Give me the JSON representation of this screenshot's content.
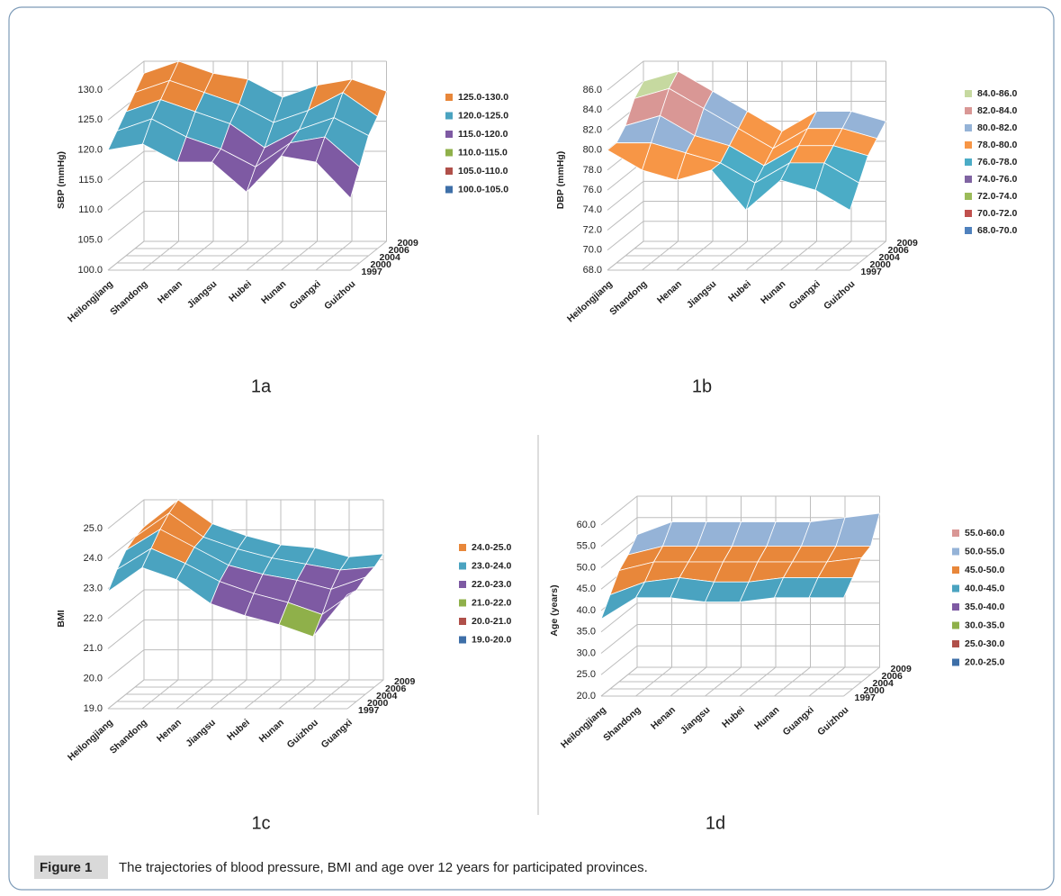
{
  "chart_data": [
    {
      "type": "surface",
      "panel_label": "1a",
      "zlabel": "SBP (mmHg)",
      "categories": [
        "Heilongjiang",
        "Shandong",
        "Henan",
        "Jiangsu",
        "Hubei",
        "Hunan",
        "Guangxi",
        "Guizhou"
      ],
      "series": [
        {
          "name": "1997",
          "values": [
            120,
            121,
            118,
            118,
            113,
            119,
            118,
            112
          ]
        },
        {
          "name": "2000",
          "values": [
            122,
            124,
            121,
            119,
            116,
            120,
            121,
            116
          ]
        },
        {
          "name": "2004",
          "values": [
            124,
            126,
            124,
            122,
            118,
            121,
            123,
            120
          ]
        },
        {
          "name": "2006",
          "values": [
            126,
            128,
            126,
            124,
            121,
            123,
            126,
            122
          ]
        },
        {
          "name": "2009",
          "values": [
            128,
            130,
            128,
            127,
            124,
            126,
            127,
            125
          ]
        }
      ],
      "zlim": [
        100,
        130
      ],
      "zticks": [
        {
          "value": 100,
          "label": "100.0"
        },
        {
          "value": 105,
          "label": "105.0"
        },
        {
          "value": 110,
          "label": "110.0"
        },
        {
          "value": 115,
          "label": "115.0"
        },
        {
          "value": 120,
          "label": "120.0"
        },
        {
          "value": 125,
          "label": "125.0"
        },
        {
          "value": 130,
          "label": "130.0"
        }
      ],
      "bands": [
        {
          "label": "125.0-130.0",
          "range": [
            125,
            130
          ],
          "color": "#e8873a"
        },
        {
          "label": "120.0-125.0",
          "range": [
            120,
            125
          ],
          "color": "#4aa3c0"
        },
        {
          "label": "115.0-120.0",
          "range": [
            115,
            120
          ],
          "color": "#7e5aa3"
        },
        {
          "label": "110.0-115.0",
          "range": [
            110,
            115
          ],
          "color": "#8fb04a"
        },
        {
          "label": "105.0-110.0",
          "range": [
            105,
            110
          ],
          "color": "#b0504a"
        },
        {
          "label": "100.0-105.0",
          "range": [
            100,
            105
          ],
          "color": "#3e6fa8"
        }
      ]
    },
    {
      "type": "surface",
      "panel_label": "1b",
      "zlabel": "DBP (mmHg)",
      "categories": [
        "Heilongjiang",
        "Shandong",
        "Henan",
        "Jiangsu",
        "Hubei",
        "Hunan",
        "Guangxi",
        "Guizhou"
      ],
      "series": [
        {
          "name": "1997",
          "values": [
            80,
            78,
            77,
            78,
            74,
            77,
            76,
            74
          ]
        },
        {
          "name": "2000",
          "values": [
            80,
            80,
            79,
            78,
            76,
            78,
            78,
            76
          ]
        },
        {
          "name": "2004",
          "values": [
            81,
            82,
            80,
            79,
            77,
            79,
            79,
            78
          ]
        },
        {
          "name": "2006",
          "values": [
            83,
            84,
            82,
            80,
            78,
            80,
            80,
            79
          ]
        },
        {
          "name": "2009",
          "values": [
            84,
            85,
            83,
            81,
            79,
            81,
            81,
            80
          ]
        }
      ],
      "zlim": [
        68,
        86
      ],
      "zticks": [
        {
          "value": 68,
          "label": "68.0"
        },
        {
          "value": 70,
          "label": "70.0"
        },
        {
          "value": 72,
          "label": "72.0"
        },
        {
          "value": 74,
          "label": "74.0"
        },
        {
          "value": 76,
          "label": "76.0"
        },
        {
          "value": 78,
          "label": "78.0"
        },
        {
          "value": 80,
          "label": "80.0"
        },
        {
          "value": 82,
          "label": "82.0"
        },
        {
          "value": 84,
          "label": "84.0"
        },
        {
          "value": 86,
          "label": "86.0"
        }
      ],
      "bands": [
        {
          "label": "84.0-86.0",
          "range": [
            84,
            86
          ],
          "color": "#c6d9a0"
        },
        {
          "label": "82.0-84.0",
          "range": [
            82,
            84
          ],
          "color": "#d99795"
        },
        {
          "label": "80.0-82.0",
          "range": [
            80,
            82
          ],
          "color": "#95b3d7"
        },
        {
          "label": "78.0-80.0",
          "range": [
            78,
            80
          ],
          "color": "#f79646"
        },
        {
          "label": "76.0-78.0",
          "range": [
            76,
            78
          ],
          "color": "#4bacc6"
        },
        {
          "label": "74.0-76.0",
          "range": [
            74,
            76
          ],
          "color": "#8064a2"
        },
        {
          "label": "72.0-74.0",
          "range": [
            72,
            74
          ],
          "color": "#9bbb59"
        },
        {
          "label": "70.0-72.0",
          "range": [
            70,
            72
          ],
          "color": "#c0504d"
        },
        {
          "label": "68.0-70.0",
          "range": [
            68,
            70
          ],
          "color": "#4f81bd"
        }
      ]
    },
    {
      "type": "surface",
      "panel_label": "1c",
      "zlabel": "BMI",
      "categories": [
        "Heilongjiang",
        "Shandong",
        "Henan",
        "Jiangsu",
        "Hubei",
        "Hunan",
        "Guizhou",
        "Guangxi"
      ],
      "series": [
        {
          "name": "1997",
          "values": [
            22.9,
            23.7,
            23.3,
            22.5,
            22.1,
            21.8,
            21.4,
            22.8
          ]
        },
        {
          "name": "2000",
          "values": [
            23.4,
            24.1,
            23.6,
            23.0,
            22.6,
            22.3,
            21.9,
            22.7
          ]
        },
        {
          "name": "2004",
          "values": [
            23.8,
            24.5,
            23.9,
            23.3,
            23.0,
            22.8,
            22.5,
            22.9
          ]
        },
        {
          "name": "2006",
          "values": [
            24.0,
            24.8,
            24.0,
            23.6,
            23.3,
            23.1,
            22.9,
            23.0
          ]
        },
        {
          "name": "2009",
          "values": [
            24.1,
            25.0,
            24.2,
            23.8,
            23.5,
            23.4,
            23.1,
            23.2
          ]
        }
      ],
      "zlim": [
        19,
        25
      ],
      "zticks": [
        {
          "value": 19,
          "label": "19.0"
        },
        {
          "value": 20,
          "label": "20.0"
        },
        {
          "value": 21,
          "label": "21.0"
        },
        {
          "value": 22,
          "label": "22.0"
        },
        {
          "value": 23,
          "label": "23.0"
        },
        {
          "value": 24,
          "label": "24.0"
        },
        {
          "value": 25,
          "label": "25.0"
        }
      ],
      "bands": [
        {
          "label": "24.0-25.0",
          "range": [
            24,
            25
          ],
          "color": "#e8873a"
        },
        {
          "label": "23.0-24.0",
          "range": [
            23,
            24
          ],
          "color": "#4aa3c0"
        },
        {
          "label": "22.0-23.0",
          "range": [
            22,
            23
          ],
          "color": "#7e5aa3"
        },
        {
          "label": "21.0-22.0",
          "range": [
            21,
            22
          ],
          "color": "#8fb04a"
        },
        {
          "label": "20.0-21.0",
          "range": [
            20,
            21
          ],
          "color": "#b0504a"
        },
        {
          "label": "19.0-20.0",
          "range": [
            19,
            20
          ],
          "color": "#3e6fa8"
        }
      ]
    },
    {
      "type": "surface",
      "panel_label": "1d",
      "zlabel": "Age (years)",
      "categories": [
        "Heilongjiang",
        "Shandong",
        "Henan",
        "Jiangsu",
        "Hubei",
        "Hunan",
        "Guangxi",
        "Guizhou"
      ],
      "series": [
        {
          "name": "1997",
          "values": [
            38,
            43,
            43,
            42,
            42,
            43,
            43,
            43
          ]
        },
        {
          "name": "2000",
          "values": [
            42,
            45,
            46,
            45,
            45,
            46,
            46,
            46
          ]
        },
        {
          "name": "2004",
          "values": [
            46,
            48,
            48,
            48,
            48,
            48,
            48,
            49
          ]
        },
        {
          "name": "2006",
          "values": [
            48,
            50,
            50,
            50,
            50,
            50,
            50,
            50
          ]
        },
        {
          "name": "2009",
          "values": [
            51,
            54,
            54,
            54,
            54,
            54,
            55,
            56
          ]
        }
      ],
      "zlim": [
        20,
        60
      ],
      "zticks": [
        {
          "value": 20,
          "label": "20.0"
        },
        {
          "value": 25,
          "label": "25.0"
        },
        {
          "value": 30,
          "label": "30.0"
        },
        {
          "value": 35,
          "label": "35.0"
        },
        {
          "value": 40,
          "label": "40.0"
        },
        {
          "value": 45,
          "label": "45.0"
        },
        {
          "value": 50,
          "label": "50.0"
        },
        {
          "value": 55,
          "label": "55.0"
        },
        {
          "value": 60,
          "label": "60.0"
        }
      ],
      "bands": [
        {
          "label": "55.0-60.0",
          "range": [
            55,
            60
          ],
          "color": "#d99795"
        },
        {
          "label": "50.0-55.0",
          "range": [
            50,
            55
          ],
          "color": "#95b3d7"
        },
        {
          "label": "45.0-50.0",
          "range": [
            45,
            50
          ],
          "color": "#e8873a"
        },
        {
          "label": "40.0-45.0",
          "range": [
            40,
            45
          ],
          "color": "#4aa3c0"
        },
        {
          "label": "35.0-40.0",
          "range": [
            35,
            40
          ],
          "color": "#7e5aa3"
        },
        {
          "label": "30.0-35.0",
          "range": [
            30,
            35
          ],
          "color": "#8fb04a"
        },
        {
          "label": "25.0-30.0",
          "range": [
            25,
            30
          ],
          "color": "#b0504a"
        },
        {
          "label": "20.0-25.0",
          "range": [
            20,
            25
          ],
          "color": "#3e6fa8"
        }
      ]
    }
  ],
  "caption": {
    "label": "Figure 1",
    "text": "The trajectories of blood pressure, BMI and age over 12 years for participated provinces."
  }
}
